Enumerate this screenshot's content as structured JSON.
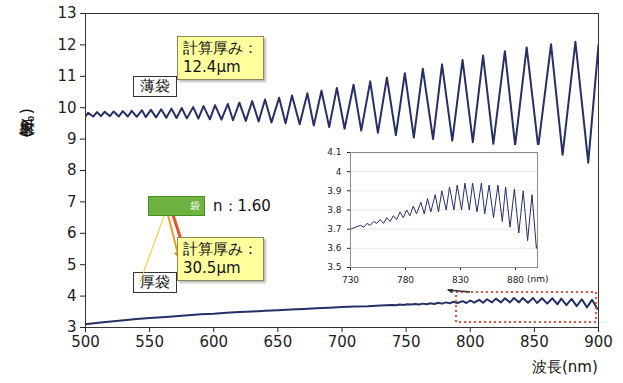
{
  "chart_data": [
    {
      "type": "line",
      "x_label": "波長(nm)",
      "y_label": "反射率(%)",
      "xlim": [
        500,
        900
      ],
      "xticks": [
        500,
        550,
        600,
        650,
        700,
        750,
        800,
        850,
        900
      ],
      "ylim": [
        3,
        13
      ],
      "yticks": [
        3,
        4,
        5,
        6,
        7,
        8,
        9,
        10,
        11,
        12,
        13
      ],
      "grid": false,
      "series": [
        {
          "name": "薄袋",
          "color": "#262f66",
          "x": [
            500,
            502,
            506,
            509,
            512,
            515,
            519,
            522,
            526,
            529,
            533,
            536,
            540,
            544,
            547,
            551,
            555,
            559,
            563,
            567,
            571,
            575,
            579,
            584,
            588,
            592,
            597,
            601,
            606,
            611,
            615,
            620,
            625,
            630,
            635,
            640,
            645,
            651,
            656,
            661,
            667,
            673,
            678,
            684,
            690,
            696,
            702,
            709,
            715,
            722,
            728,
            735,
            742,
            749,
            756,
            763,
            771,
            778,
            786,
            794,
            802,
            810,
            818,
            827,
            835,
            844,
            853,
            863,
            872,
            882,
            892,
            900
          ],
          "values": [
            9.72,
            9.84,
            9.72,
            9.86,
            9.73,
            9.87,
            9.73,
            9.88,
            9.72,
            9.89,
            9.72,
            9.9,
            9.71,
            9.92,
            9.7,
            9.93,
            9.69,
            9.95,
            9.68,
            9.97,
            9.67,
            9.99,
            9.66,
            10.02,
            9.65,
            10.05,
            9.63,
            10.08,
            9.62,
            10.12,
            9.6,
            10.16,
            9.58,
            10.21,
            9.56,
            10.26,
            9.53,
            10.32,
            9.5,
            10.39,
            9.47,
            10.46,
            9.43,
            10.54,
            9.38,
            10.63,
            9.33,
            10.73,
            9.27,
            10.84,
            9.2,
            10.96,
            9.13,
            11.1,
            9.05,
            11.24,
            9.0,
            11.38,
            8.95,
            11.52,
            8.9,
            11.66,
            8.85,
            11.8,
            8.8,
            11.92,
            8.75,
            12.02,
            8.5,
            12.1,
            8.25,
            12.0
          ]
        },
        {
          "name": "厚袋",
          "color": "#262f66",
          "x": [
            500,
            510,
            520,
            530,
            540,
            550,
            560,
            570,
            580,
            590,
            600,
            610,
            620,
            630,
            640,
            650,
            660,
            670,
            680,
            690,
            700,
            710,
            720,
            730,
            739,
            742,
            745,
            748,
            751,
            754,
            757,
            760,
            763,
            766,
            769,
            772,
            775,
            778,
            781,
            784,
            787,
            790,
            794,
            797,
            800,
            803,
            807,
            810,
            813,
            817,
            820,
            824,
            827,
            831,
            834,
            838,
            841,
            845,
            849,
            852,
            856,
            860,
            864,
            868,
            871,
            875,
            879,
            883,
            887,
            891,
            895,
            899,
            900
          ],
          "values": [
            3.1,
            3.15,
            3.19,
            3.23,
            3.27,
            3.3,
            3.33,
            3.36,
            3.39,
            3.42,
            3.44,
            3.47,
            3.49,
            3.51,
            3.53,
            3.55,
            3.57,
            3.59,
            3.61,
            3.63,
            3.65,
            3.67,
            3.68,
            3.7,
            3.72,
            3.71,
            3.73,
            3.72,
            3.74,
            3.73,
            3.75,
            3.73,
            3.76,
            3.74,
            3.77,
            3.75,
            3.79,
            3.76,
            3.8,
            3.77,
            3.82,
            3.78,
            3.84,
            3.78,
            3.86,
            3.79,
            3.88,
            3.79,
            3.9,
            3.8,
            3.92,
            3.8,
            3.93,
            3.8,
            3.94,
            3.8,
            3.94,
            3.79,
            3.94,
            3.78,
            3.93,
            3.76,
            3.93,
            3.74,
            3.92,
            3.71,
            3.91,
            3.68,
            3.9,
            3.64,
            3.88,
            3.6,
            3.62
          ]
        }
      ],
      "annotations": [
        {
          "text": [
            "計算厚み：",
            "12.4μm"
          ]
        },
        {
          "text": [
            "計算厚み：",
            "30.5μm"
          ]
        },
        {
          "text": [
            "袋"
          ]
        },
        {
          "text": [
            "n：1.60"
          ]
        }
      ]
    },
    {
      "type": "line",
      "x_label": "(nm)",
      "xlim": [
        730,
        900
      ],
      "xticks": [
        730,
        780,
        830,
        880
      ],
      "ylim": [
        3.5,
        4.1
      ],
      "yticks": [
        3.5,
        3.6,
        3.7,
        3.8,
        3.9,
        4,
        4.1
      ],
      "grid": true,
      "series": [
        {
          "color": "#262f66",
          "x": [
            730,
            739,
            742,
            745,
            748,
            751,
            754,
            757,
            760,
            763,
            766,
            769,
            772,
            775,
            778,
            781,
            784,
            787,
            790,
            794,
            797,
            800,
            803,
            807,
            810,
            813,
            817,
            820,
            824,
            827,
            831,
            834,
            838,
            841,
            845,
            849,
            852,
            856,
            860,
            864,
            868,
            871,
            875,
            879,
            883,
            887,
            891,
            895,
            899,
            900
          ],
          "values": [
            3.7,
            3.72,
            3.71,
            3.73,
            3.72,
            3.74,
            3.73,
            3.75,
            3.73,
            3.76,
            3.74,
            3.77,
            3.75,
            3.79,
            3.76,
            3.8,
            3.77,
            3.82,
            3.78,
            3.84,
            3.78,
            3.86,
            3.79,
            3.88,
            3.79,
            3.9,
            3.8,
            3.92,
            3.8,
            3.93,
            3.8,
            3.94,
            3.8,
            3.94,
            3.79,
            3.94,
            3.78,
            3.93,
            3.76,
            3.93,
            3.74,
            3.92,
            3.71,
            3.91,
            3.68,
            3.9,
            3.64,
            3.88,
            3.6,
            3.62
          ]
        }
      ]
    }
  ]
}
